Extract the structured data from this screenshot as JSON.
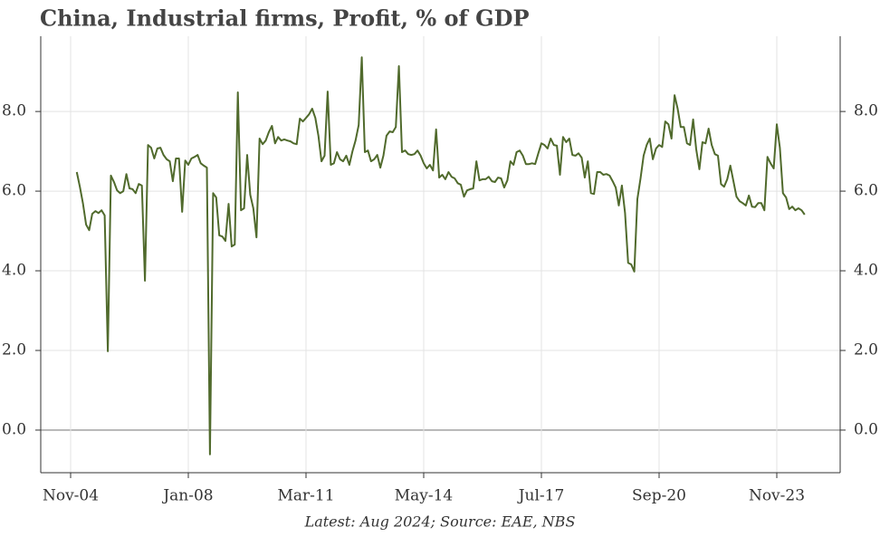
{
  "chart_data": {
    "type": "line",
    "title": "China, Industrial firms, Profit, % of GDP",
    "footnote": "Latest: Aug 2024; Source: EAE, NBS",
    "categories": [
      "Nov-04",
      null,
      null,
      null,
      null,
      null,
      null,
      null,
      null,
      null,
      null,
      null,
      null,
      null,
      null,
      null,
      null,
      null,
      null,
      null,
      null,
      null,
      null,
      null,
      null,
      null,
      null,
      null,
      null,
      null,
      null,
      null,
      null,
      null,
      null,
      null,
      null,
      null,
      "Jan-08",
      null,
      null,
      null,
      null,
      null,
      null,
      null,
      null,
      null,
      null,
      null,
      null,
      null,
      null,
      null,
      null,
      null,
      null,
      null,
      null,
      null,
      null,
      null,
      null,
      null,
      null,
      null,
      null,
      null,
      null,
      null,
      null,
      null,
      null,
      null,
      null,
      null,
      "Mar-11",
      null,
      null,
      null,
      null,
      null,
      null,
      null,
      null,
      null,
      null,
      null,
      null,
      null,
      null,
      null,
      null,
      null,
      null,
      null,
      null,
      null,
      null,
      null,
      null,
      null,
      null,
      null,
      null,
      null,
      null,
      null,
      null,
      null,
      null,
      null,
      null,
      null,
      "May-14",
      null,
      null,
      null,
      null,
      null,
      null,
      null,
      null,
      null,
      null,
      null,
      null,
      null,
      null,
      null,
      null,
      null,
      null,
      null,
      null,
      null,
      null,
      null,
      null,
      null,
      null,
      null,
      null,
      null,
      null,
      null,
      null,
      null,
      null,
      null,
      null,
      null,
      "Jul-17",
      null,
      null,
      null,
      null,
      null,
      null,
      null,
      null,
      null,
      null,
      null,
      null,
      null,
      null,
      null,
      null,
      null,
      null,
      null,
      null,
      null,
      null,
      null,
      null,
      null,
      null,
      null,
      null,
      null,
      null,
      null,
      null,
      null,
      null,
      null,
      null,
      null,
      "Sep-20",
      null,
      null,
      null,
      null,
      null,
      null,
      null,
      null,
      null,
      null,
      null,
      null,
      null,
      null,
      null,
      null,
      null,
      null,
      null,
      null,
      null,
      null,
      null,
      null,
      null,
      null,
      null,
      null,
      null,
      null,
      null,
      null,
      null,
      null,
      null,
      null,
      null,
      "Nov-23",
      null,
      null,
      null,
      null,
      null,
      null,
      null,
      null,
      null
    ],
    "series": [
      {
        "color": "#506a2c",
        "values": [
          null,
          null,
          6.48,
          6.1,
          5.68,
          5.16,
          5.02,
          5.43,
          5.5,
          5.45,
          5.52,
          5.39,
          1.98,
          6.39,
          6.23,
          6.02,
          5.95,
          6.0,
          6.43,
          6.07,
          6.05,
          5.95,
          6.18,
          6.14,
          3.75,
          7.16,
          7.09,
          6.82,
          7.07,
          7.09,
          6.91,
          6.8,
          6.75,
          6.25,
          6.82,
          6.82,
          5.48,
          6.77,
          6.66,
          6.82,
          6.86,
          6.91,
          6.7,
          6.64,
          6.59,
          -0.61,
          5.95,
          5.84,
          4.89,
          4.86,
          4.75,
          5.68,
          4.61,
          4.66,
          8.48,
          5.52,
          5.57,
          6.91,
          5.91,
          5.57,
          4.84,
          7.32,
          7.18,
          7.27,
          7.48,
          7.64,
          7.2,
          7.36,
          7.27,
          7.3,
          7.27,
          7.25,
          7.2,
          7.18,
          7.82,
          7.75,
          7.84,
          7.93,
          8.07,
          7.84,
          7.39,
          6.75,
          6.89,
          8.5,
          6.66,
          6.7,
          6.98,
          6.8,
          6.75,
          6.89,
          6.66,
          7.0,
          7.27,
          7.66,
          9.36,
          6.98,
          7.02,
          6.75,
          6.8,
          6.91,
          6.59,
          6.89,
          7.39,
          7.5,
          7.48,
          7.61,
          9.14,
          6.98,
          7.02,
          6.93,
          6.91,
          6.93,
          7.02,
          6.89,
          6.7,
          6.57,
          6.66,
          6.52,
          7.55,
          6.34,
          6.41,
          6.3,
          6.48,
          6.36,
          6.32,
          6.2,
          6.16,
          5.86,
          6.02,
          6.05,
          6.07,
          6.75,
          6.27,
          6.3,
          6.3,
          6.36,
          6.25,
          6.23,
          6.34,
          6.32,
          6.09,
          6.27,
          6.75,
          6.66,
          6.98,
          7.02,
          6.89,
          6.68,
          6.68,
          6.7,
          6.68,
          6.95,
          7.2,
          7.16,
          7.07,
          7.32,
          7.16,
          7.14,
          6.41,
          7.36,
          7.23,
          7.32,
          6.91,
          6.89,
          6.95,
          6.84,
          6.34,
          6.75,
          5.95,
          5.93,
          6.48,
          6.48,
          6.41,
          6.43,
          6.39,
          6.25,
          6.09,
          5.64,
          6.14,
          5.45,
          4.2,
          4.16,
          3.98,
          5.8,
          6.32,
          6.89,
          7.16,
          7.32,
          6.8,
          7.07,
          7.16,
          7.11,
          7.75,
          7.68,
          7.32,
          8.41,
          8.07,
          7.61,
          7.61,
          7.2,
          7.16,
          7.8,
          7.05,
          6.55,
          7.23,
          7.2,
          7.57,
          7.16,
          6.93,
          6.89,
          6.18,
          6.11,
          6.3,
          6.64,
          6.25,
          5.86,
          5.75,
          5.7,
          5.64,
          5.89,
          5.61,
          5.6,
          5.7,
          5.7,
          5.52,
          6.86,
          6.7,
          6.57,
          7.68,
          7.09,
          5.95,
          5.84,
          5.55,
          5.61,
          5.52,
          5.57,
          5.52,
          5.41
        ]
      }
    ],
    "ylim": [
      -1.07,
      9.89
    ],
    "yticks": [
      {
        "value": 0,
        "label": "0.0"
      },
      {
        "value": 2,
        "label": "2.0"
      },
      {
        "value": 4,
        "label": "4.0"
      },
      {
        "value": 6,
        "label": "6.0"
      },
      {
        "value": 8,
        "label": "8.0"
      }
    ],
    "grid": true
  }
}
